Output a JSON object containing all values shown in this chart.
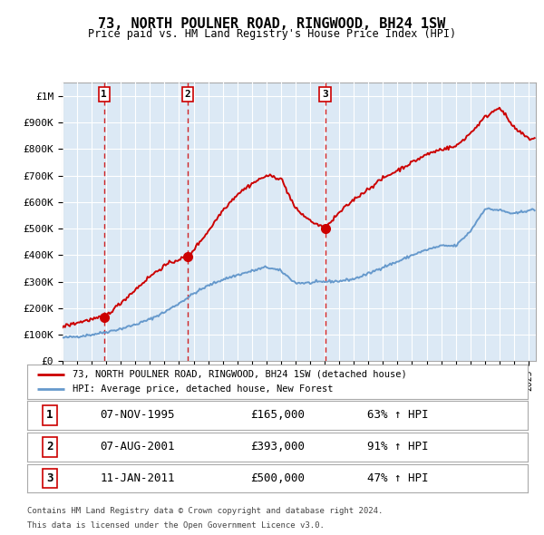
{
  "title": "73, NORTH POULNER ROAD, RINGWOOD, BH24 1SW",
  "subtitle": "Price paid vs. HM Land Registry's House Price Index (HPI)",
  "legend_line1": "73, NORTH POULNER ROAD, RINGWOOD, BH24 1SW (detached house)",
  "legend_line2": "HPI: Average price, detached house, New Forest",
  "footer1": "Contains HM Land Registry data © Crown copyright and database right 2024.",
  "footer2": "This data is licensed under the Open Government Licence v3.0.",
  "transactions": [
    {
      "num": 1,
      "date": "07-NOV-1995",
      "price": 165000,
      "pct": "63% ↑ HPI",
      "x": 1995.85
    },
    {
      "num": 2,
      "date": "07-AUG-2001",
      "price": 393000,
      "pct": "91% ↑ HPI",
      "x": 2001.6
    },
    {
      "num": 3,
      "date": "11-JAN-2011",
      "price": 500000,
      "pct": "47% ↑ HPI",
      "x": 2011.03
    }
  ],
  "xlim": [
    1993.0,
    2025.5
  ],
  "ylim": [
    0,
    1050000
  ],
  "yticks": [
    0,
    100000,
    200000,
    300000,
    400000,
    500000,
    600000,
    700000,
    800000,
    900000,
    1000000
  ],
  "ytick_labels": [
    "£0",
    "£100K",
    "£200K",
    "£300K",
    "£400K",
    "£500K",
    "£600K",
    "£700K",
    "£800K",
    "£900K",
    "£1M"
  ],
  "hpi_color": "#6699cc",
  "price_color": "#cc0000",
  "bg_plot": "#dce9f5",
  "bg_hatch": "#c8d8ea",
  "grid_color": "#ffffff",
  "hpi_key_x": [
    1993,
    1994,
    1995,
    1996,
    1997,
    1998,
    1999,
    2000,
    2001,
    2002,
    2003,
    2004,
    2005,
    2006,
    2007,
    2008,
    2009,
    2010,
    2011,
    2012,
    2013,
    2014,
    2015,
    2016,
    2017,
    2018,
    2019,
    2020,
    2021,
    2022,
    2023,
    2024,
    2025
  ],
  "hpi_key_y": [
    88000,
    93000,
    100000,
    110000,
    122000,
    138000,
    158000,
    185000,
    218000,
    255000,
    285000,
    308000,
    325000,
    340000,
    355000,
    340000,
    295000,
    295000,
    300000,
    302000,
    310000,
    330000,
    355000,
    375000,
    400000,
    420000,
    435000,
    435000,
    490000,
    575000,
    570000,
    555000,
    570000
  ],
  "price_key_x": [
    1993,
    1994,
    1995,
    1995.85,
    1997,
    1998,
    1999,
    2000,
    2001,
    2001.6,
    2003,
    2004,
    2005,
    2006,
    2007,
    2008,
    2009,
    2010,
    2011.03,
    2012,
    2013,
    2014,
    2015,
    2016,
    2017,
    2018,
    2019,
    2020,
    2021,
    2022,
    2023,
    2024,
    2025
  ],
  "price_key_y": [
    130000,
    145000,
    158000,
    165000,
    220000,
    270000,
    320000,
    360000,
    385000,
    393000,
    490000,
    570000,
    630000,
    670000,
    700000,
    690000,
    575000,
    530000,
    500000,
    560000,
    610000,
    650000,
    690000,
    720000,
    750000,
    780000,
    800000,
    810000,
    860000,
    920000,
    960000,
    880000,
    840000
  ]
}
